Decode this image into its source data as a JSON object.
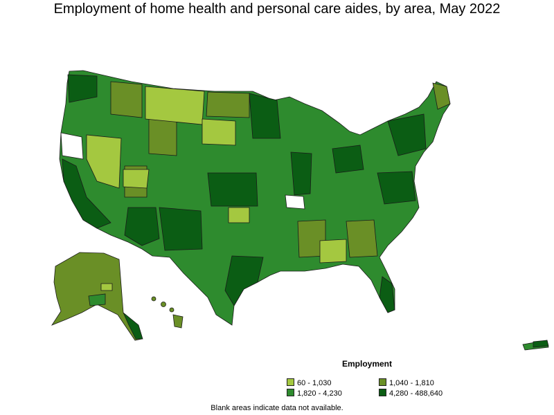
{
  "title": "Employment of home health and personal care aides, by area, May 2022",
  "legend": {
    "title": "Employment",
    "items": [
      {
        "label": "60 - 1,030",
        "color": "#a4c840"
      },
      {
        "label": "1,040 - 1,810",
        "color": "#6a8f26"
      },
      {
        "label": "1,820 - 4,230",
        "color": "#2e8b2e"
      },
      {
        "label": "4,280 - 488,640",
        "color": "#0b5d14"
      }
    ]
  },
  "footnote": "Blank areas indicate data not available."
}
